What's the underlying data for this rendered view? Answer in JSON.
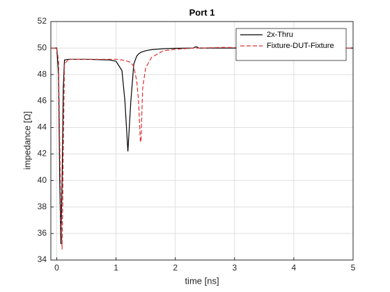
{
  "chart_data": {
    "type": "line",
    "title": "Port 1",
    "xlabel": "time [ns]",
    "ylabel": "impedance  [Ω]",
    "x": [
      -0.1,
      0,
      0.03,
      0.05,
      0.07,
      0.09,
      0.11,
      0.13,
      0.2,
      0.5,
      0.9,
      1.0,
      1.1,
      1.15,
      1.2,
      1.25,
      1.3,
      1.35,
      1.38,
      1.41,
      1.42,
      1.45,
      1.5,
      1.6,
      1.8,
      2.0,
      2.3,
      2.35,
      2.4,
      2.8,
      3.5,
      5
    ],
    "series": [
      {
        "name": "2x-Thru",
        "color": "#000000",
        "dash": false,
        "values": [
          50,
          50,
          48,
          40,
          35.2,
          40,
          47,
          49.1,
          49.15,
          49.15,
          49.1,
          49,
          48.3,
          46,
          42.2,
          46,
          48.8,
          49.4,
          49.55,
          49.65,
          49.68,
          49.72,
          49.8,
          49.88,
          49.95,
          49.98,
          50,
          50.1,
          50,
          50,
          50,
          50
        ]
      },
      {
        "name": "Fixture-DUT-Fixture",
        "color": "#e03030",
        "dash": true,
        "values": [
          50,
          50,
          49,
          43,
          37,
          34.8,
          42,
          48.8,
          49.15,
          49.15,
          49.15,
          49.15,
          49.1,
          49.05,
          49.0,
          48.9,
          48.6,
          47.5,
          46,
          43,
          42.9,
          47,
          48.5,
          49.3,
          49.8,
          49.9,
          50,
          50,
          50,
          50.05,
          50,
          50
        ]
      }
    ],
    "xlim": [
      -0.1,
      5
    ],
    "xticks": [
      0,
      1,
      2,
      3,
      4,
      5
    ],
    "ylim": [
      34,
      52
    ],
    "yticks": [
      34,
      36,
      38,
      40,
      42,
      44,
      46,
      48,
      50,
      52
    ],
    "grid": true,
    "legend": "northeast"
  }
}
